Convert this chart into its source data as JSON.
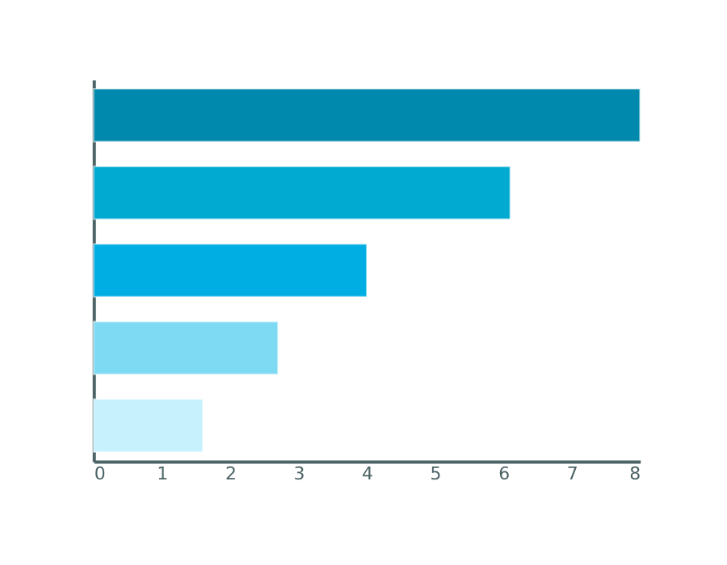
{
  "chart_data": {
    "type": "bar",
    "orientation": "horizontal",
    "categories": [
      null,
      null,
      null,
      null,
      null
    ],
    "values": [
      8,
      6.1,
      4,
      2.7,
      1.6
    ],
    "colors": [
      "#0088ad",
      "#00aad0",
      "#00aee4",
      "#7ddaf2",
      "#c6f1fd"
    ],
    "xlim": [
      0,
      8
    ],
    "xticks": [
      0,
      1,
      2,
      3,
      4,
      5,
      6,
      7,
      8
    ],
    "grid": false
  }
}
